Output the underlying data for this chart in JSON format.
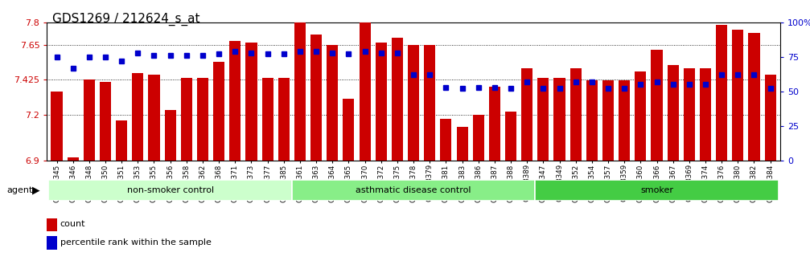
{
  "title": "GDS1269 / 212624_s_at",
  "samples": [
    "GSM38345",
    "GSM38346",
    "GSM38348",
    "GSM38350",
    "GSM38351",
    "GSM38353",
    "GSM38355",
    "GSM38356",
    "GSM38358",
    "GSM38362",
    "GSM38368",
    "GSM38371",
    "GSM38373",
    "GSM38377",
    "GSM38385",
    "GSM38361",
    "GSM38363",
    "GSM38364",
    "GSM38365",
    "GSM38370",
    "GSM38372",
    "GSM38375",
    "GSM38378",
    "GSM38379",
    "GSM38381",
    "GSM38383",
    "GSM38386",
    "GSM38387",
    "GSM38388",
    "GSM38389",
    "GSM38347",
    "GSM38349",
    "GSM38352",
    "GSM38354",
    "GSM38357",
    "GSM38359",
    "GSM38360",
    "GSM38366",
    "GSM38367",
    "GSM38369",
    "GSM38374",
    "GSM38376",
    "GSM38380",
    "GSM38382",
    "GSM38384"
  ],
  "red_values": [
    7.35,
    6.92,
    7.43,
    7.41,
    7.16,
    7.47,
    7.46,
    7.23,
    7.44,
    7.44,
    7.54,
    7.68,
    7.67,
    7.44,
    7.44,
    7.8,
    7.72,
    7.65,
    7.3,
    7.8,
    7.67,
    7.7,
    7.65,
    7.65,
    7.17,
    7.12,
    7.2,
    7.38,
    7.22,
    7.5,
    7.44,
    7.44,
    7.5,
    7.42,
    7.42,
    7.42,
    7.48,
    7.62,
    7.52,
    7.5,
    7.5,
    7.78,
    7.75,
    7.73,
    7.46
  ],
  "blue_values": [
    75,
    67,
    75,
    75,
    72,
    78,
    76,
    76,
    76,
    76,
    77,
    79,
    78,
    77,
    77,
    79,
    79,
    78,
    77,
    79,
    78,
    78,
    62,
    62,
    53,
    52,
    53,
    53,
    52,
    57,
    52,
    52,
    57,
    57,
    52,
    52,
    55,
    57,
    55,
    55,
    55,
    62,
    62,
    62,
    52
  ],
  "groups": [
    {
      "label": "non-smoker control",
      "start": 0,
      "end": 15,
      "color": "#ccffcc"
    },
    {
      "label": "asthmatic disease control",
      "start": 15,
      "end": 30,
      "color": "#88ee88"
    },
    {
      "label": "smoker",
      "start": 30,
      "end": 45,
      "color": "#44cc44"
    }
  ],
  "ylim_left": [
    6.9,
    7.8
  ],
  "ylim_right": [
    0,
    100
  ],
  "yticks_left": [
    6.9,
    7.2,
    7.425,
    7.65,
    7.8
  ],
  "ytick_labels_left": [
    "6.9",
    "7.2",
    "7.425",
    "7.65",
    "7.8"
  ],
  "yticks_right": [
    0,
    25,
    50,
    75,
    100
  ],
  "ytick_labels_right": [
    "0",
    "25",
    "50",
    "75",
    "100%"
  ],
  "bar_color": "#cc0000",
  "dot_color": "#0000cc",
  "background_color": "#ffffff",
  "plot_bg_color": "#ffffff",
  "title_fontsize": 11,
  "agent_label": "agent"
}
